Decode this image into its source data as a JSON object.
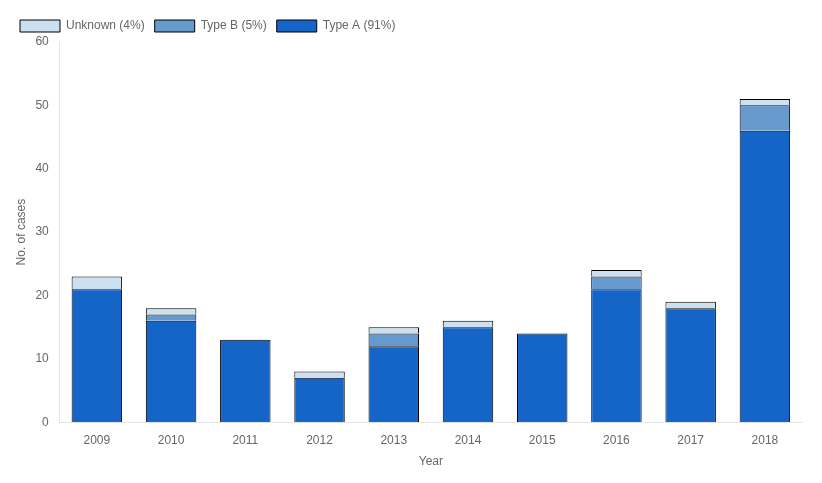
{
  "chart_data": {
    "type": "bar",
    "xlabel": "Year",
    "ylabel": "No. of cases",
    "categories": [
      "2009",
      "2010",
      "2011",
      "2012",
      "2013",
      "2014",
      "2015",
      "2016",
      "2017",
      "2018"
    ],
    "series": [
      {
        "name": "Type A (91%)",
        "color": "#1565c8",
        "values": [
          21,
          16,
          13,
          7,
          12,
          15,
          14,
          21,
          18,
          46
        ]
      },
      {
        "name": "Type B (5%)",
        "color": "#6699cc",
        "values": [
          0,
          1,
          0,
          0,
          2,
          0,
          0,
          2,
          0,
          4
        ]
      },
      {
        "name": "Unknown (4%)",
        "color": "#cce0f0",
        "values": [
          2,
          1,
          0,
          1,
          1,
          1,
          0,
          1,
          1,
          1
        ]
      }
    ],
    "stacked": true,
    "ylim": [
      0,
      60
    ],
    "yticks": [
      0,
      10,
      20,
      30,
      40,
      50,
      60
    ],
    "legend": "upper left",
    "grid": false
  }
}
